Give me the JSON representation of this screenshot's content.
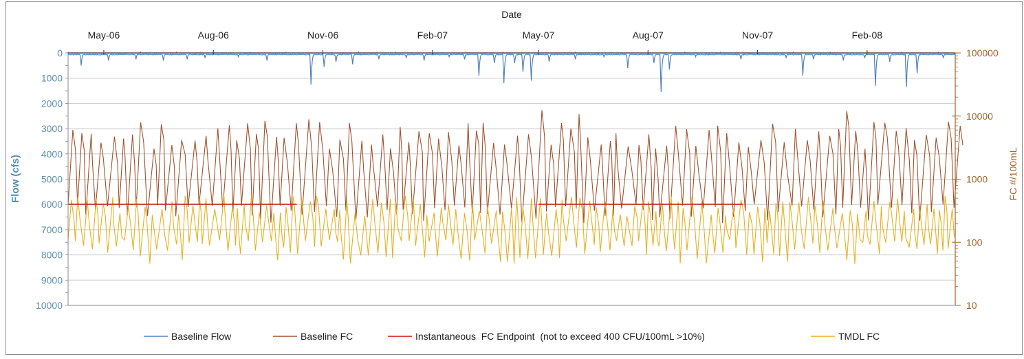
{
  "chart_data": {
    "type": "line",
    "xlabel": "Date",
    "ylabel_left": "Flow (cfs)",
    "ylabel_right": "FC #/100mL",
    "x_ticks": [
      "May-06",
      "Aug-06",
      "Nov-06",
      "Feb-07",
      "May-07",
      "Aug-07",
      "Nov-07",
      "Feb-08"
    ],
    "x_range": [
      "2006-04-01",
      "2008-04-15"
    ],
    "y_left_ticks": [
      "0",
      "1000",
      "2000",
      "3000",
      "4000",
      "5000",
      "6000",
      "7000",
      "8000",
      "9000",
      "10000"
    ],
    "y_left_range": [
      10000,
      0
    ],
    "y_left_inverted": true,
    "y_right_ticks": [
      "10",
      "100",
      "1000",
      "10000",
      "100000"
    ],
    "y_right_range": [
      10,
      100000
    ],
    "y_right_scale": "log",
    "grid": true,
    "legend_position": "bottom",
    "colors": {
      "flow": "#4f81bd",
      "baseline_fc": "#a0522d",
      "endpoint": "#cc1111",
      "tmdl_fc": "#e8b020",
      "left_axis": "#5a8fb0",
      "right_axis": "#a0652a"
    },
    "series": [
      {
        "name": "Baseline Flow",
        "axis": "left",
        "summary": {
          "base": 50,
          "peaks": [
            [
              "2006-04-12",
              500
            ],
            [
              "2006-05-05",
              300
            ],
            [
              "2006-05-28",
              250
            ],
            [
              "2006-06-20",
              300
            ],
            [
              "2006-07-10",
              250
            ],
            [
              "2006-07-25",
              200
            ],
            [
              "2006-08-22",
              150
            ],
            [
              "2006-09-15",
              300
            ],
            [
              "2006-10-22",
              1250
            ],
            [
              "2006-11-02",
              550
            ],
            [
              "2006-11-12",
              350
            ],
            [
              "2006-11-26",
              450
            ],
            [
              "2006-12-18",
              250
            ],
            [
              "2007-01-10",
              200
            ],
            [
              "2007-01-25",
              300
            ],
            [
              "2007-02-15",
              150
            ],
            [
              "2007-02-28",
              250
            ],
            [
              "2007-03-12",
              900
            ],
            [
              "2007-03-25",
              400
            ],
            [
              "2007-04-02",
              1200
            ],
            [
              "2007-04-11",
              400
            ],
            [
              "2007-04-18",
              750
            ],
            [
              "2007-04-25",
              1100
            ],
            [
              "2007-05-10",
              350
            ],
            [
              "2007-06-01",
              250
            ],
            [
              "2007-06-25",
              150
            ],
            [
              "2007-07-15",
              600
            ],
            [
              "2007-08-06",
              400
            ],
            [
              "2007-08-12",
              1550
            ],
            [
              "2007-08-19",
              650
            ],
            [
              "2007-09-10",
              150
            ],
            [
              "2007-10-18",
              250
            ],
            [
              "2007-11-25",
              200
            ],
            [
              "2007-12-09",
              900
            ],
            [
              "2007-12-18",
              250
            ],
            [
              "2008-01-12",
              300
            ],
            [
              "2008-01-30",
              200
            ],
            [
              "2008-02-08",
              1300
            ],
            [
              "2008-02-20",
              350
            ],
            [
              "2008-03-05",
              1350
            ],
            [
              "2008-03-14",
              800
            ],
            [
              "2008-04-05",
              200
            ]
          ]
        }
      },
      {
        "name": "Baseline FC",
        "axis": "right",
        "summary": {
          "low_range": [
            200,
            400
          ],
          "high_range": [
            3000,
            15000
          ],
          "peak_max": 15000,
          "pattern": "frequent spikes every ~4-10 days"
        }
      },
      {
        "name": "Instantaneous  FC Endpoint  (not to exceed 400 CFU/100mL >10%)",
        "axis": "right",
        "segments": [
          {
            "x": [
              "2006-04-01",
              "2006-10-10"
            ],
            "y": 400
          },
          {
            "x": [
              "2007-05-01",
              "2007-10-20"
            ],
            "y": 400
          }
        ]
      },
      {
        "name": "TMDL FC",
        "axis": "right",
        "summary": {
          "low_range": [
            45,
            110
          ],
          "high_range": [
            250,
            550
          ],
          "pattern": "oscillating between ~60 and ~450"
        }
      }
    ]
  }
}
